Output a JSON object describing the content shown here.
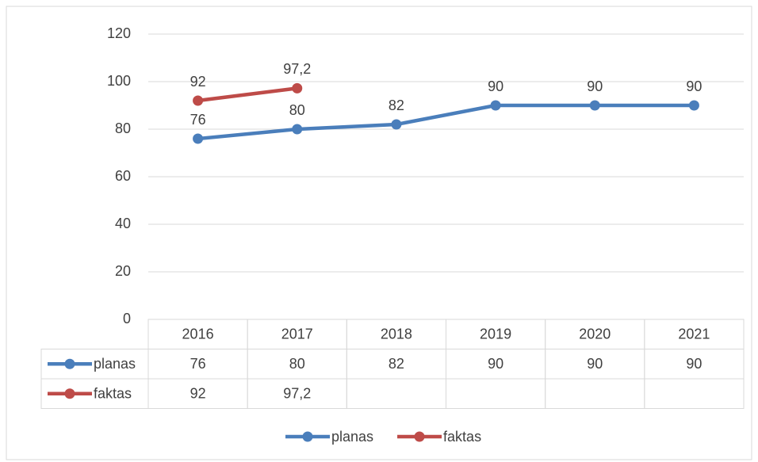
{
  "chart_data": {
    "type": "line",
    "categories": [
      "2016",
      "2017",
      "2018",
      "2019",
      "2020",
      "2021"
    ],
    "series": [
      {
        "name": "planas",
        "color": "#4a7ebb",
        "values": [
          76,
          80,
          82,
          90,
          90,
          90
        ]
      },
      {
        "name": "faktas",
        "color": "#be4b48",
        "values": [
          92,
          97.2,
          null,
          null,
          null,
          null
        ],
        "value_labels": [
          "92",
          "97,2",
          null,
          null,
          null,
          null
        ]
      }
    ],
    "ylim": [
      0,
      120
    ],
    "yticks": [
      0,
      20,
      40,
      60,
      80,
      100,
      120
    ],
    "grid": true,
    "legend": "bottom",
    "data_table": true
  }
}
